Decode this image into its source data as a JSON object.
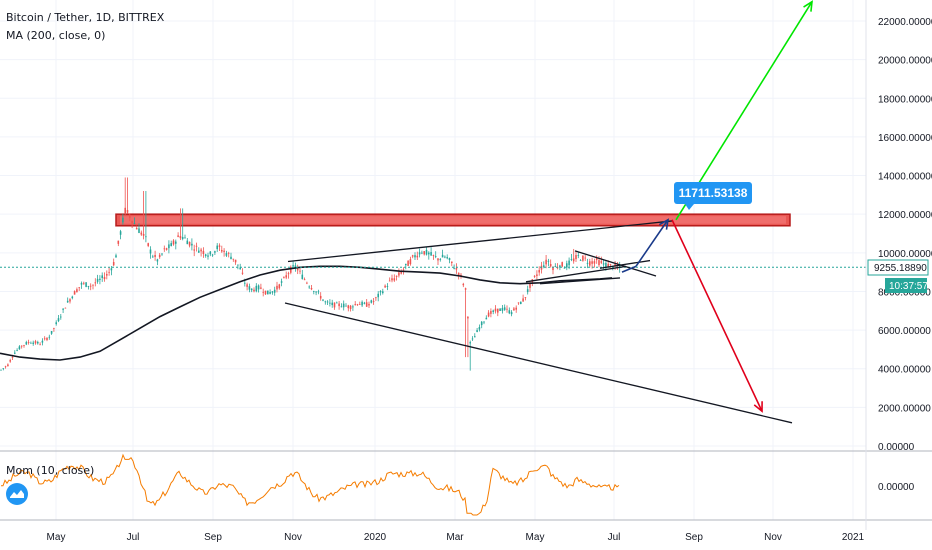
{
  "header": {
    "symbol": "Bitcoin / Tether, 1D, BITTREX",
    "indicator": "MA (200, close, 0)"
  },
  "momentum": {
    "label": "Mom (10, close)",
    "zero_label": "0.00000"
  },
  "price_axis": {
    "ticks": [
      "22000.00000",
      "20000.00000",
      "18000.00000",
      "16000.00000",
      "14000.00000",
      "12000.00000",
      "10000.00000",
      "8000.00000",
      "6000.00000",
      "4000.00000",
      "2000.00000",
      "0.00000"
    ],
    "current_price": "9255.18890",
    "countdown": "10:37:57"
  },
  "time_axis": {
    "ticks": [
      "May",
      "Jul",
      "Sep",
      "Nov",
      "2020",
      "Mar",
      "May",
      "Jul",
      "Sep",
      "Nov",
      "2021"
    ]
  },
  "annotation": {
    "target_price": "11711.53138"
  },
  "colors": {
    "up_candle": "#26a69a",
    "down_candle": "#ef5350",
    "ma_line": "#131722",
    "resistance_band": "#e53935",
    "bull_arrow": "#00e600",
    "bear_arrow": "#e0001b",
    "blue_arrow": "#1a3a8a",
    "badge": "#2196f3",
    "momentum_line": "#f57c00",
    "countdown_bg": "#26a69a"
  },
  "chart_data": {
    "type": "candlestick",
    "ylim": [
      0,
      23000
    ],
    "price_path": [
      [
        0,
        3900
      ],
      [
        8,
        4200
      ],
      [
        14,
        4800
      ],
      [
        22,
        5200
      ],
      [
        30,
        5400
      ],
      [
        40,
        5300
      ],
      [
        50,
        5700
      ],
      [
        58,
        6500
      ],
      [
        66,
        7300
      ],
      [
        74,
        7900
      ],
      [
        82,
        8400
      ],
      [
        92,
        8300
      ],
      [
        100,
        8600
      ],
      [
        108,
        8900
      ],
      [
        115,
        9600
      ],
      [
        120,
        10900
      ],
      [
        125,
        12200
      ],
      [
        130,
        11900
      ],
      [
        137,
        11300
      ],
      [
        145,
        10800
      ],
      [
        152,
        9900
      ],
      [
        158,
        9600
      ],
      [
        164,
        10100
      ],
      [
        172,
        10400
      ],
      [
        180,
        10900
      ],
      [
        186,
        10700
      ],
      [
        194,
        10300
      ],
      [
        202,
        10100
      ],
      [
        210,
        9900
      ],
      [
        218,
        10300
      ],
      [
        226,
        10000
      ],
      [
        234,
        9700
      ],
      [
        240,
        9200
      ],
      [
        246,
        8300
      ],
      [
        252,
        8100
      ],
      [
        260,
        8200
      ],
      [
        268,
        7900
      ],
      [
        276,
        8100
      ],
      [
        284,
        8600
      ],
      [
        290,
        9100
      ],
      [
        296,
        9300
      ],
      [
        302,
        8800
      ],
      [
        310,
        8300
      ],
      [
        318,
        7900
      ],
      [
        326,
        7400
      ],
      [
        334,
        7300
      ],
      [
        342,
        7300
      ],
      [
        350,
        7200
      ],
      [
        358,
        7400
      ],
      [
        366,
        7300
      ],
      [
        374,
        7500
      ],
      [
        382,
        8000
      ],
      [
        390,
        8500
      ],
      [
        398,
        8800
      ],
      [
        406,
        9300
      ],
      [
        414,
        9800
      ],
      [
        422,
        10100
      ],
      [
        430,
        9900
      ],
      [
        438,
        9700
      ],
      [
        446,
        9800
      ],
      [
        454,
        9300
      ],
      [
        460,
        8900
      ],
      [
        466,
        8000
      ],
      [
        470,
        5300
      ],
      [
        474,
        5600
      ],
      [
        480,
        6200
      ],
      [
        488,
        6800
      ],
      [
        496,
        7000
      ],
      [
        504,
        7100
      ],
      [
        512,
        6900
      ],
      [
        518,
        7300
      ],
      [
        524,
        7600
      ],
      [
        530,
        8300
      ],
      [
        536,
        8800
      ],
      [
        542,
        9300
      ],
      [
        548,
        9600
      ],
      [
        554,
        9200
      ],
      [
        560,
        9400
      ],
      [
        566,
        9300
      ],
      [
        572,
        9600
      ],
      [
        578,
        9800
      ],
      [
        584,
        9700
      ],
      [
        590,
        9500
      ],
      [
        596,
        9600
      ],
      [
        604,
        9400
      ],
      [
        612,
        9300
      ],
      [
        620,
        9200
      ]
    ],
    "ma200": [
      [
        0,
        4800
      ],
      [
        20,
        4600
      ],
      [
        40,
        4500
      ],
      [
        60,
        4450
      ],
      [
        80,
        4600
      ],
      [
        100,
        4900
      ],
      [
        120,
        5500
      ],
      [
        140,
        6100
      ],
      [
        160,
        6700
      ],
      [
        180,
        7200
      ],
      [
        200,
        7700
      ],
      [
        220,
        8100
      ],
      [
        240,
        8500
      ],
      [
        260,
        8850
      ],
      [
        280,
        9100
      ],
      [
        300,
        9250
      ],
      [
        320,
        9300
      ],
      [
        340,
        9300
      ],
      [
        360,
        9250
      ],
      [
        380,
        9150
      ],
      [
        400,
        9050
      ],
      [
        420,
        9000
      ],
      [
        440,
        8950
      ],
      [
        460,
        8800
      ],
      [
        480,
        8600
      ],
      [
        500,
        8450
      ],
      [
        520,
        8400
      ],
      [
        540,
        8450
      ],
      [
        560,
        8550
      ],
      [
        580,
        8600
      ],
      [
        600,
        8650
      ],
      [
        612,
        8700
      ]
    ],
    "resistance_zone": [
      11400,
      12000
    ],
    "trendlines": [
      {
        "from": [
          288,
          9550
        ],
        "to": [
          672,
          11650
        ],
        "color": "#131722"
      },
      {
        "from": [
          285,
          7400
        ],
        "to": [
          792,
          1200
        ],
        "color": "#131722"
      },
      {
        "from": [
          526,
          8500
        ],
        "to": [
          626,
          9300
        ],
        "color": "#131722"
      },
      {
        "from": [
          575,
          10100
        ],
        "to": [
          656,
          8800
        ],
        "color": "#131722"
      },
      {
        "from": [
          600,
          9200
        ],
        "to": [
          650,
          9600
        ],
        "color": "#131722"
      },
      {
        "from": [
          540,
          8400
        ],
        "to": [
          620,
          8700
        ],
        "color": "#131722"
      }
    ],
    "projections": {
      "bull": {
        "from": [
          676,
          11711
        ],
        "to": [
          812,
          23000
        ]
      },
      "bear": {
        "from": [
          672,
          11711
        ],
        "to": [
          762,
          1800
        ]
      },
      "blue": {
        "from": [
          636,
          9300
        ],
        "to": [
          668,
          11711
        ]
      }
    },
    "momentum_ylim": [
      -1700,
      1700
    ]
  }
}
